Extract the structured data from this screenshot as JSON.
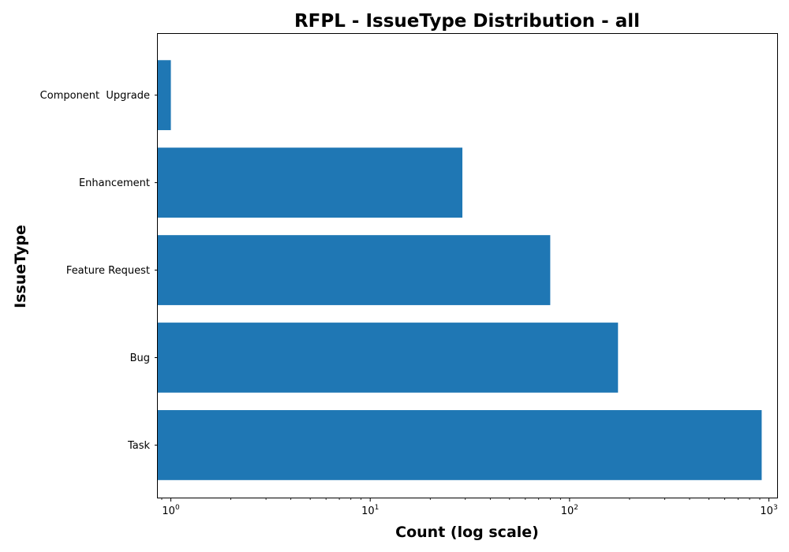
{
  "chart_data": {
    "type": "bar",
    "orientation": "horizontal",
    "title": "RFPL - IssueType Distribution - all",
    "xlabel": "Count (log scale)",
    "ylabel": "IssueType",
    "x_scale": "log",
    "xlim": [
      0.86,
      1100
    ],
    "x_ticks": [
      {
        "base": "10",
        "exp": "0",
        "value": 1
      },
      {
        "base": "10",
        "exp": "1",
        "value": 10
      },
      {
        "base": "10",
        "exp": "2",
        "value": 100
      },
      {
        "base": "10",
        "exp": "3",
        "value": 1000
      }
    ],
    "categories": [
      "Task",
      "Bug",
      "Feature Request",
      "Enhancement",
      "Component  Upgrade"
    ],
    "values": [
      920,
      175,
      80,
      29,
      1
    ],
    "bar_color": "#1f77b4",
    "grid": false
  }
}
